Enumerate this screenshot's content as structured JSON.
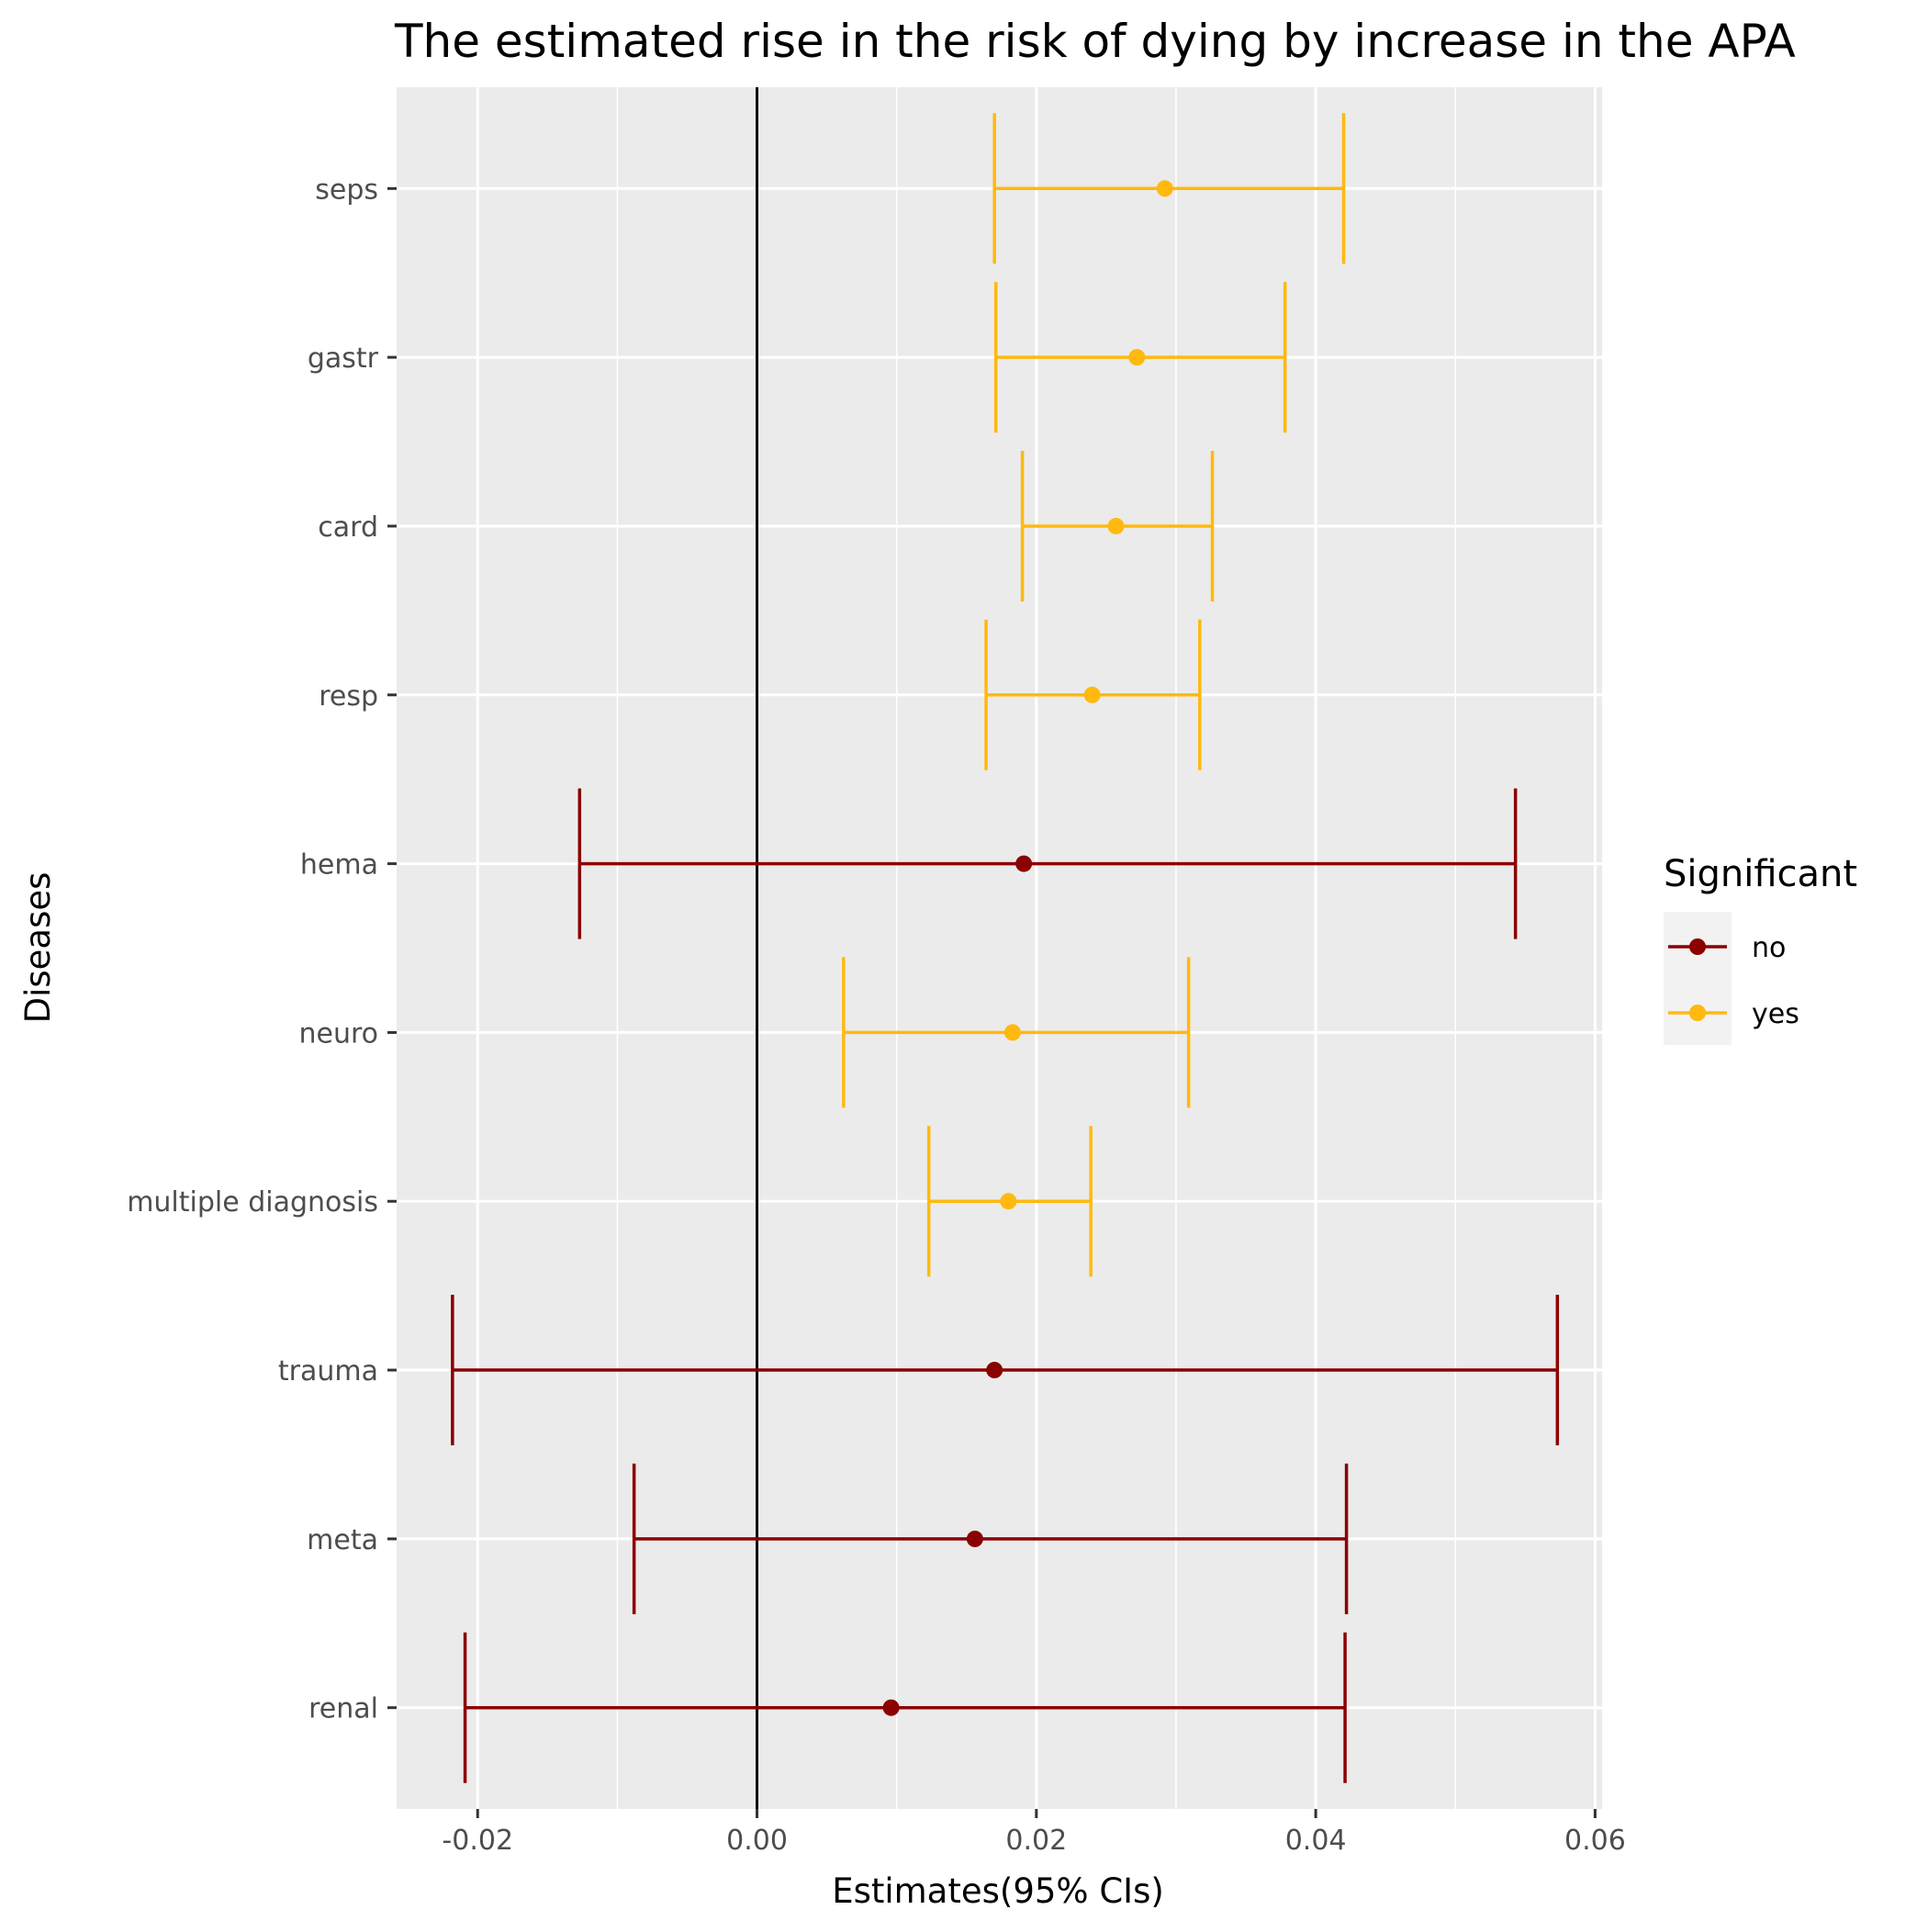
{
  "chart_data": {
    "type": "forest",
    "title": "The estimated rise in the risk of dying by increase in the APA",
    "xlabel": "Estimates(95% CIs)",
    "ylabel": "Diseases",
    "xlim": [
      -0.0258,
      0.0605
    ],
    "x_ticks": [
      -0.02,
      0.0,
      0.02,
      0.04,
      0.06
    ],
    "x_tick_labels": [
      "-0.02",
      "0.00",
      "0.02",
      "0.04",
      "0.06"
    ],
    "reference_line": 0,
    "grid": true,
    "legend": {
      "title": "Significant",
      "placement": "right",
      "entries": [
        {
          "label": "no",
          "color": "#8B0000"
        },
        {
          "label": "yes",
          "color": "#FFB90F"
        }
      ]
    },
    "series": [
      {
        "category": "seps",
        "estimate": 0.0292,
        "lower": 0.017,
        "upper": 0.042,
        "significant": "yes"
      },
      {
        "category": "gastr",
        "estimate": 0.0272,
        "lower": 0.0171,
        "upper": 0.0378,
        "significant": "yes"
      },
      {
        "category": "card",
        "estimate": 0.0257,
        "lower": 0.019,
        "upper": 0.0326,
        "significant": "yes"
      },
      {
        "category": "resp",
        "estimate": 0.024,
        "lower": 0.0164,
        "upper": 0.0317,
        "significant": "yes"
      },
      {
        "category": "hema",
        "estimate": 0.0191,
        "lower": -0.0127,
        "upper": 0.0543,
        "significant": "no"
      },
      {
        "category": "neuro",
        "estimate": 0.0183,
        "lower": 0.0062,
        "upper": 0.0309,
        "significant": "yes"
      },
      {
        "category": "multiple diagnosis",
        "estimate": 0.018,
        "lower": 0.0123,
        "upper": 0.0239,
        "significant": "yes"
      },
      {
        "category": "trauma",
        "estimate": 0.017,
        "lower": -0.0218,
        "upper": 0.0573,
        "significant": "no"
      },
      {
        "category": "meta",
        "estimate": 0.0156,
        "lower": -0.0088,
        "upper": 0.0422,
        "significant": "no"
      },
      {
        "category": "renal",
        "estimate": 0.0096,
        "lower": -0.0209,
        "upper": 0.0421,
        "significant": "no"
      }
    ]
  }
}
